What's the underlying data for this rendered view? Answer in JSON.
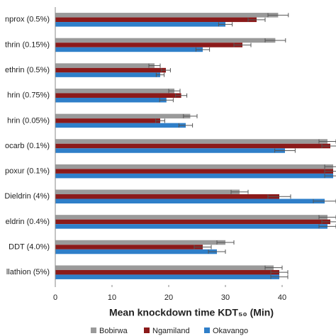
{
  "chart_data": {
    "type": "hbar",
    "x_label": "Mean knockdown time KDT₅₀ (Min)",
    "categories": [
      "nprox (0.5%)",
      "thrin (0.15%)",
      "ethrin (0.5%)",
      "hrin (0.75%)",
      "hrin (0.05%)",
      "ocarb (0.1%)",
      "poxur (0.1%)",
      "Dieldrin (4%)",
      "eldrin (0.4%)",
      "DDT (4.0%)",
      "llathion (5%)"
    ],
    "series": [
      {
        "name": "Bobirwa",
        "color": "#9a9a9a",
        "values": [
          39.3,
          38.8,
          17.5,
          21.0,
          23.8,
          48.0,
          49.0,
          32.5,
          48.0,
          30.0,
          38.5
        ],
        "errors": [
          1.8,
          1.8,
          1.0,
          1.0,
          1.2,
          1.5,
          1.5,
          1.5,
          1.5,
          1.5,
          1.5
        ]
      },
      {
        "name": "Ngamiland",
        "color": "#8b1a1a",
        "values": [
          35.5,
          33.0,
          19.5,
          22.2,
          18.5,
          48.5,
          49.0,
          39.5,
          48.5,
          26.0,
          39.5
        ],
        "errors": [
          1.5,
          1.5,
          0.8,
          1.0,
          0.8,
          1.5,
          1.5,
          2.0,
          1.5,
          1.5,
          1.5
        ]
      },
      {
        "name": "Okavango",
        "color": "#2f7fc9",
        "values": [
          30.0,
          26.0,
          18.5,
          19.6,
          23.0,
          40.5,
          49.0,
          47.5,
          48.0,
          28.5,
          39.5
        ],
        "errors": [
          1.2,
          1.2,
          0.7,
          1.2,
          1.2,
          1.8,
          1.5,
          2.0,
          1.5,
          1.5,
          1.5
        ]
      }
    ],
    "xlim": [
      0,
      49.5
    ],
    "xticks": [
      0,
      10,
      20,
      30,
      40
    ],
    "grid": false,
    "legend": "bottom"
  }
}
